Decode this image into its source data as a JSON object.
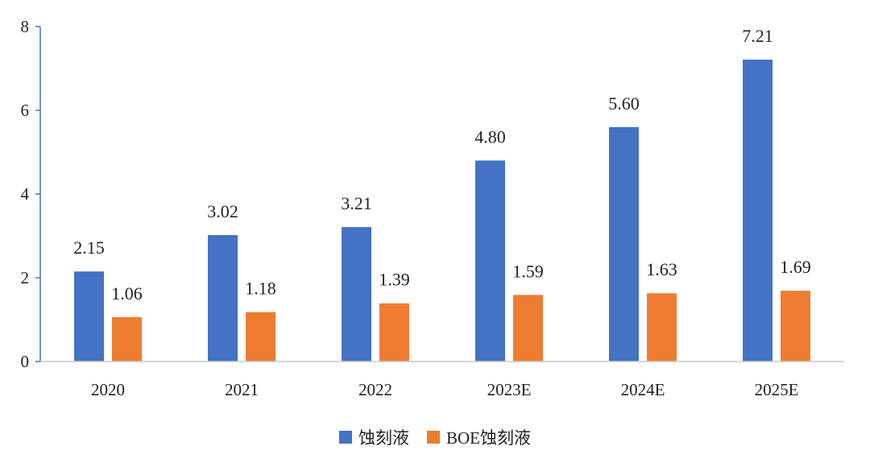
{
  "chart_data": {
    "type": "bar",
    "categories": [
      "2020",
      "2021",
      "2022",
      "2023E",
      "2024E",
      "2025E"
    ],
    "series": [
      {
        "name": "蚀刻液",
        "values": [
          2.15,
          3.02,
          3.21,
          4.8,
          5.6,
          7.21
        ],
        "color": "#4472C4"
      },
      {
        "name": "BOE蚀刻液",
        "values": [
          1.06,
          1.18,
          1.39,
          1.59,
          1.63,
          1.69
        ],
        "color": "#ED7D31"
      }
    ],
    "data_labels": [
      [
        "2.15",
        "3.02",
        "3.21",
        "4.80",
        "5.60",
        "7.21"
      ],
      [
        "1.06",
        "1.18",
        "1.39",
        "1.59",
        "1.63",
        "1.69"
      ]
    ],
    "yticks": [
      "0",
      "2",
      "4",
      "6",
      "8"
    ],
    "ylim": [
      0,
      8
    ],
    "grid": false,
    "legend_position": "bottom",
    "axis_color": "#4472C4"
  }
}
